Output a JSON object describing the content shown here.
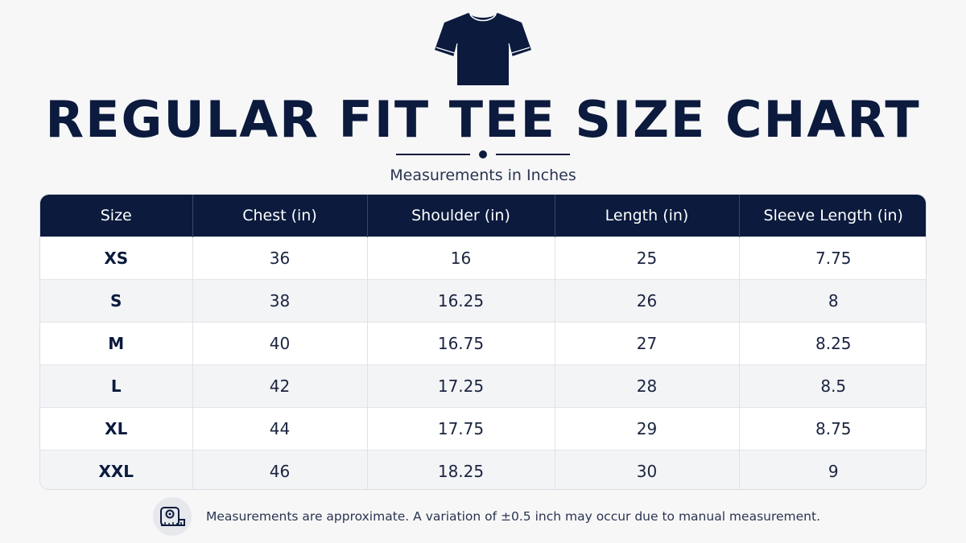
{
  "header": {
    "icon": "t-shirt-icon",
    "title": "REGULAR FIT TEE SIZE CHART",
    "subtitle": "Measurements in Inches"
  },
  "table": {
    "columns": [
      "Size",
      "Chest (in)",
      "Shoulder (in)",
      "Length (in)",
      "Sleeve Length (in)"
    ],
    "rows": [
      [
        "XS",
        "36",
        "16",
        "25",
        "7.75"
      ],
      [
        "S",
        "38",
        "16.25",
        "26",
        "8"
      ],
      [
        "M",
        "40",
        "16.75",
        "27",
        "8.25"
      ],
      [
        "L",
        "42",
        "17.25",
        "28",
        "8.5"
      ],
      [
        "XL",
        "44",
        "17.75",
        "29",
        "8.75"
      ],
      [
        "XXL",
        "46",
        "18.25",
        "30",
        "9"
      ]
    ]
  },
  "footer": {
    "icon": "measuring-tape-icon",
    "note": "Measurements are approximate. A variation of ±0.5 inch may occur due to manual measurement."
  },
  "colors": {
    "navy": "#0b1a3d",
    "background": "#f7f7f8",
    "row_alt": "#f3f4f6"
  }
}
